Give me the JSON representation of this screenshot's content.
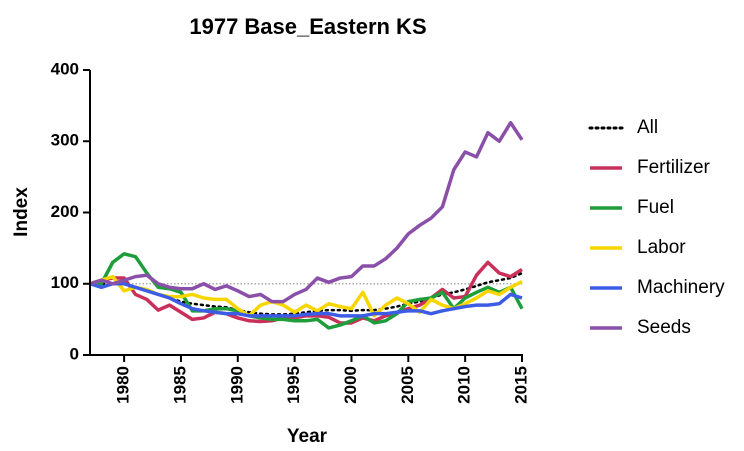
{
  "chart_data": {
    "type": "line",
    "title": "1977 Base_Eastern KS",
    "x_label": "Year",
    "y_label": "Index",
    "x": [
      1977,
      1978,
      1979,
      1980,
      1981,
      1982,
      1983,
      1984,
      1985,
      1986,
      1987,
      1988,
      1989,
      1990,
      1991,
      1992,
      1993,
      1994,
      1995,
      1996,
      1997,
      1998,
      1999,
      2000,
      2001,
      2002,
      2003,
      2004,
      2005,
      2006,
      2007,
      2008,
      2009,
      2010,
      2011,
      2012,
      2013,
      2014,
      2015
    ],
    "xlim": [
      1977,
      2015
    ],
    "xticks": [
      1980,
      1985,
      1990,
      1995,
      2000,
      2005,
      2010,
      2015
    ],
    "ylim": [
      0,
      400
    ],
    "yticks": [
      0,
      100,
      200,
      300,
      400
    ],
    "reference_line": 100,
    "legend": "right",
    "series": [
      {
        "name": "All",
        "color": "#000000",
        "dash": "dotted",
        "values": [
          100,
          100,
          100,
          100,
          95,
          92,
          85,
          80,
          75,
          72,
          70,
          68,
          67,
          63,
          60,
          58,
          57,
          57,
          58,
          60,
          62,
          63,
          63,
          62,
          63,
          63,
          65,
          68,
          72,
          75,
          80,
          85,
          88,
          92,
          97,
          102,
          105,
          108,
          115
        ]
      },
      {
        "name": "Fertilizer",
        "color": "#c9305a",
        "values": [
          100,
          105,
          108,
          108,
          85,
          78,
          63,
          70,
          60,
          50,
          52,
          60,
          58,
          52,
          48,
          47,
          48,
          52,
          52,
          55,
          55,
          53,
          45,
          45,
          52,
          48,
          55,
          60,
          65,
          70,
          80,
          92,
          80,
          82,
          112,
          130,
          115,
          110,
          120
        ]
      },
      {
        "name": "Fuel",
        "color": "#1e9e3a",
        "values": [
          100,
          100,
          130,
          142,
          138,
          115,
          95,
          93,
          88,
          62,
          62,
          65,
          65,
          62,
          55,
          52,
          50,
          50,
          48,
          48,
          50,
          38,
          42,
          48,
          55,
          45,
          48,
          58,
          75,
          78,
          80,
          88,
          65,
          80,
          88,
          95,
          88,
          95,
          65
        ]
      },
      {
        "name": "Labor",
        "color": "#f7d600",
        "values": [
          100,
          105,
          110,
          90,
          95,
          92,
          85,
          82,
          82,
          85,
          80,
          78,
          78,
          65,
          55,
          70,
          75,
          70,
          60,
          70,
          62,
          72,
          68,
          65,
          88,
          55,
          70,
          80,
          72,
          60,
          78,
          70,
          65,
          72,
          80,
          90,
          85,
          95,
          103
        ]
      },
      {
        "name": "Machinery",
        "color": "#3d5ce6",
        "values": [
          100,
          95,
          100,
          100,
          95,
          90,
          85,
          80,
          72,
          65,
          62,
          60,
          58,
          58,
          55,
          55,
          55,
          55,
          55,
          57,
          58,
          58,
          55,
          55,
          55,
          58,
          58,
          60,
          62,
          62,
          58,
          62,
          65,
          68,
          70,
          70,
          72,
          85,
          80
        ]
      },
      {
        "name": "Seeds",
        "color": "#8a4fa8",
        "values": [
          100,
          105,
          100,
          105,
          110,
          112,
          100,
          95,
          93,
          93,
          100,
          92,
          97,
          90,
          82,
          85,
          75,
          75,
          85,
          92,
          108,
          102,
          108,
          110,
          125,
          125,
          135,
          150,
          170,
          182,
          192,
          208,
          260,
          285,
          278,
          312,
          300,
          326,
          302
        ]
      }
    ]
  }
}
